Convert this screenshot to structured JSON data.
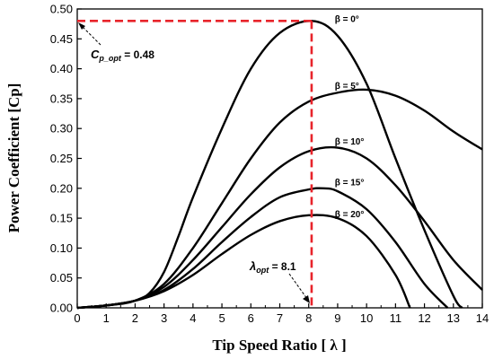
{
  "chart_data": {
    "type": "line",
    "xlabel": "Tip Speed Ratio [ λ ]",
    "ylabel": "Power Coefficient [Cp]",
    "xlim": [
      0,
      14
    ],
    "ylim": [
      0,
      0.5
    ],
    "xticks": [
      "0",
      "1",
      "2",
      "3",
      "4",
      "5",
      "6",
      "7",
      "8",
      "9",
      "10",
      "11",
      "12",
      "13",
      "14"
    ],
    "yticks": [
      "0.00",
      "0.05",
      "0.10",
      "0.15",
      "0.20",
      "0.25",
      "0.30",
      "0.35",
      "0.40",
      "0.45",
      "0.50"
    ],
    "grid": false,
    "series": [
      {
        "name": "β = 0°",
        "points": [
          [
            0,
            0
          ],
          [
            1,
            0.004
          ],
          [
            2,
            0.012
          ],
          [
            2.5,
            0.025
          ],
          [
            3,
            0.06
          ],
          [
            3.5,
            0.12
          ],
          [
            4,
            0.185
          ],
          [
            5,
            0.3
          ],
          [
            6,
            0.4
          ],
          [
            7,
            0.46
          ],
          [
            8.1,
            0.48
          ],
          [
            9,
            0.455
          ],
          [
            10,
            0.375
          ],
          [
            11,
            0.25
          ],
          [
            12,
            0.13
          ],
          [
            13,
            0.02
          ],
          [
            13.3,
            0
          ]
        ]
      },
      {
        "name": "β = 5°",
        "points": [
          [
            0,
            0
          ],
          [
            1,
            0.004
          ],
          [
            2,
            0.012
          ],
          [
            3,
            0.04
          ],
          [
            4,
            0.1
          ],
          [
            5,
            0.175
          ],
          [
            6,
            0.25
          ],
          [
            7,
            0.31
          ],
          [
            8,
            0.345
          ],
          [
            9,
            0.36
          ],
          [
            10,
            0.365
          ],
          [
            11,
            0.355
          ],
          [
            12,
            0.33
          ],
          [
            13,
            0.295
          ],
          [
            14,
            0.265
          ]
        ]
      },
      {
        "name": "β = 10°",
        "points": [
          [
            0,
            0
          ],
          [
            1,
            0.004
          ],
          [
            2,
            0.012
          ],
          [
            3,
            0.035
          ],
          [
            4,
            0.08
          ],
          [
            5,
            0.135
          ],
          [
            6,
            0.19
          ],
          [
            7,
            0.235
          ],
          [
            8,
            0.262
          ],
          [
            9,
            0.268
          ],
          [
            10,
            0.25
          ],
          [
            11,
            0.205
          ],
          [
            12,
            0.145
          ],
          [
            13,
            0.08
          ],
          [
            14,
            0.03
          ]
        ]
      },
      {
        "name": "β = 15°",
        "points": [
          [
            0,
            0
          ],
          [
            1,
            0.004
          ],
          [
            2,
            0.012
          ],
          [
            3,
            0.03
          ],
          [
            4,
            0.065
          ],
          [
            5,
            0.11
          ],
          [
            6,
            0.152
          ],
          [
            7,
            0.185
          ],
          [
            8,
            0.198
          ],
          [
            8.5,
            0.2
          ],
          [
            9,
            0.195
          ],
          [
            10,
            0.165
          ],
          [
            11,
            0.11
          ],
          [
            12,
            0.04
          ],
          [
            12.8,
            0
          ]
        ]
      },
      {
        "name": "β = 20°",
        "points": [
          [
            0,
            0
          ],
          [
            1,
            0.004
          ],
          [
            2,
            0.012
          ],
          [
            3,
            0.028
          ],
          [
            4,
            0.055
          ],
          [
            5,
            0.09
          ],
          [
            6,
            0.122
          ],
          [
            7,
            0.145
          ],
          [
            8,
            0.155
          ],
          [
            9,
            0.15
          ],
          [
            10,
            0.12
          ],
          [
            11,
            0.055
          ],
          [
            11.5,
            0
          ]
        ]
      }
    ],
    "annotations": {
      "cp_opt": {
        "prefix": "C",
        "subscript": "p_opt",
        "suffix": " = 0.48",
        "value": 0.48
      },
      "lambda_opt": {
        "prefix": "λ",
        "subscript": "opt",
        "suffix": " = 8.1",
        "value": 8.1
      }
    },
    "colors": {
      "curves": "#000000",
      "optimum": "#e8242b"
    }
  }
}
